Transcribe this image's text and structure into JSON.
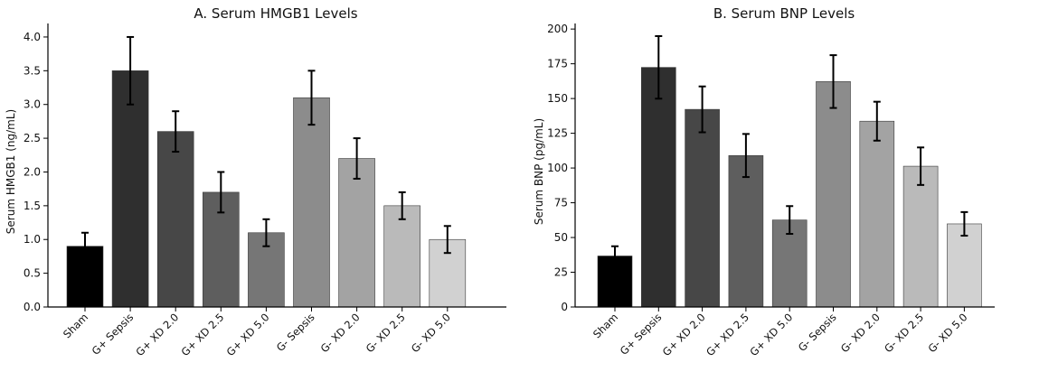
{
  "chart_data": [
    {
      "type": "bar",
      "title": "A. Serum HMGB1 Levels",
      "xlabel": "",
      "ylabel": "Serum HMGB1 (ng/mL)",
      "categories": [
        "Sham",
        "G+ Sepsis",
        "G+ XD 2.0",
        "G+ XD 2.5",
        "G+ XD 5.0",
        "G- Sepsis",
        "G- XD 2.0",
        "G- XD 2.5",
        "G- XD 5.0"
      ],
      "values": [
        0.9,
        3.5,
        2.6,
        1.7,
        1.1,
        3.1,
        2.2,
        1.5,
        1.0
      ],
      "errors": [
        0.2,
        0.5,
        0.3,
        0.3,
        0.2,
        0.4,
        0.3,
        0.2,
        0.2
      ],
      "colors": [
        "#000000",
        "#2f2f2f",
        "#474747",
        "#5e5e5e",
        "#767676",
        "#8c8c8c",
        "#a3a3a3",
        "#bababa",
        "#d1d1d1"
      ],
      "yticks": [
        "0.0",
        "0.5",
        "1.0",
        "1.5",
        "2.0",
        "2.5",
        "3.0",
        "3.5",
        "4.0"
      ],
      "ylim": [
        0,
        4.2
      ],
      "grid": false
    },
    {
      "type": "bar",
      "title": "B. Serum BNP Levels",
      "xlabel": "",
      "ylabel": "Serum BNP (pg/mL)",
      "categories": [
        "Sham",
        "G+ Sepsis",
        "G+ XD 2.0",
        "G+ XD 2.5",
        "G+ XD 5.0",
        "G- Sepsis",
        "G- XD 2.0",
        "G- XD 2.5",
        "G- XD 5.0"
      ],
      "values": [
        36.7,
        172.4,
        142.2,
        109,
        62.6,
        162.2,
        133.7,
        101.3,
        59.8
      ],
      "errors": [
        7,
        22.5,
        16.5,
        15.5,
        10,
        19,
        14,
        13.5,
        8.5
      ],
      "colors": [
        "#000000",
        "#2f2f2f",
        "#474747",
        "#5e5e5e",
        "#767676",
        "#8c8c8c",
        "#a3a3a3",
        "#bababa",
        "#d1d1d1"
      ],
      "yticks": [
        "0",
        "25",
        "50",
        "75",
        "100",
        "125",
        "150",
        "175",
        "200"
      ],
      "ylim": [
        0,
        204
      ],
      "grid": false
    }
  ]
}
